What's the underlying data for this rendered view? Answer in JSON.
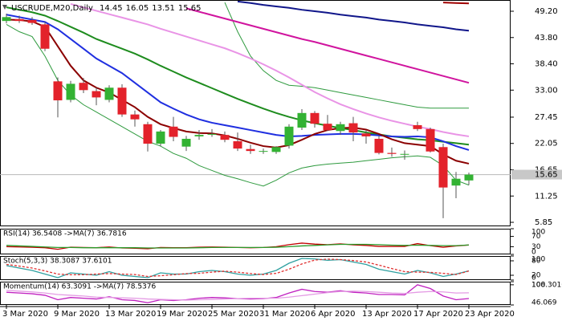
{
  "chart_data": [
    {
      "type": "candlestick",
      "title": "USCRUDE,M20,Daily",
      "categories": [
        "3 Mar 2020",
        null,
        null,
        null,
        "9 Mar 2020",
        null,
        null,
        null,
        "13 Mar 2020",
        null,
        null,
        null,
        "19 Mar 2020",
        null,
        null,
        null,
        "25 Mar 2020",
        null,
        null,
        null,
        "31 Mar 2020",
        null,
        null,
        null,
        "6 Apr 2020",
        null,
        null,
        null,
        "13 Apr 2020",
        null,
        null,
        null,
        "17 Apr 2020",
        null,
        null,
        null,
        "23 Apr 2020"
      ],
      "open": [
        47.2,
        47.6,
        47.4,
        46.5,
        34.8,
        31.0,
        34.5,
        32.8,
        31.0,
        33.5,
        28.0,
        26.0,
        22.0,
        25.5,
        21.4,
        23.5,
        23.9,
        23.8,
        22.5,
        20.9,
        20.5,
        20.3,
        21.6,
        25.3,
        28.3,
        26.1,
        24.6,
        26.2,
        24.1,
        23.0,
        20.1,
        19.9,
        25.8,
        25.0,
        21.3,
        13.4,
        14.45
      ],
      "high": [
        48.7,
        48.3,
        48.0,
        47.0,
        35.6,
        34.9,
        35.5,
        33.5,
        34.0,
        34.2,
        28.8,
        26.5,
        24.8,
        27.5,
        23.6,
        24.8,
        25.0,
        24.5,
        24.3,
        21.8,
        21.0,
        21.5,
        26.0,
        29.1,
        28.7,
        27.9,
        26.5,
        27.5,
        24.8,
        23.6,
        21.2,
        20.6,
        26.5,
        25.3,
        22.0,
        16.2,
        16.05
      ],
      "low": [
        46.7,
        46.8,
        46.4,
        41.0,
        27.4,
        30.5,
        32.4,
        29.9,
        30.5,
        27.5,
        25.5,
        20.4,
        21.5,
        22.5,
        20.5,
        22.8,
        23.4,
        22.3,
        20.5,
        19.9,
        19.9,
        19.9,
        21.0,
        24.8,
        25.3,
        24.6,
        23.8,
        22.5,
        22.0,
        19.8,
        19.3,
        18.7,
        24.6,
        20.2,
        6.7,
        10.8,
        13.51
      ],
      "close": [
        48.0,
        47.2,
        46.8,
        41.5,
        30.9,
        34.3,
        33.0,
        31.5,
        33.5,
        28.0,
        27.0,
        22.0,
        24.5,
        23.4,
        23.0,
        23.8,
        24.0,
        22.8,
        21.0,
        20.5,
        20.5,
        21.3,
        25.5,
        28.3,
        26.1,
        24.8,
        26.0,
        24.3,
        23.5,
        20.1,
        19.9,
        19.9,
        25.0,
        20.4,
        13.0,
        14.8,
        15.65
      ],
      "up_color": "#33b233",
      "down_color": "#e3222b",
      "series": [
        {
          "color": "#2e9a3e",
          "width": 1,
          "values": [
            46.5,
            45,
            44,
            40,
            35,
            32,
            30,
            28.5,
            27,
            25.5,
            24,
            22.5,
            21.5,
            20,
            19,
            17.5,
            16.5,
            15.5,
            14.8,
            14,
            13.3,
            14.5,
            16,
            17,
            17.5,
            17.8,
            18,
            18.2,
            18.5,
            18.8,
            19.1,
            19.3,
            19.5,
            19.2,
            17.5,
            14.5,
            13.5
          ]
        },
        {
          "color": "#2e9a3e",
          "width": 1,
          "values": [
            null,
            null,
            null,
            null,
            null,
            null,
            null,
            null,
            null,
            null,
            null,
            null,
            null,
            null,
            null,
            null,
            null,
            51,
            45,
            40,
            37,
            35,
            34,
            33.8,
            33.5,
            33,
            32.5,
            32,
            31.5,
            31,
            30.5,
            30,
            29.5,
            29.3,
            29.3,
            29.3,
            29.3
          ]
        },
        {
          "color": "#e994e6",
          "width": 2,
          "values": [
            null,
            null,
            null,
            null,
            null,
            50.7,
            50,
            49.3,
            48.6,
            47.9,
            47.2,
            46.5,
            45.6,
            44.8,
            44,
            43.2,
            42.4,
            41.6,
            40.6,
            39.5,
            38.3,
            37,
            35.6,
            34.1,
            32.6,
            31.3,
            30.1,
            29.1,
            28.2,
            27.4,
            26.7,
            26.1,
            25.5,
            25,
            24.4,
            23.9,
            23.5
          ]
        },
        {
          "color": "#d0149e",
          "width": 2,
          "values": [
            null,
            null,
            null,
            null,
            null,
            null,
            null,
            null,
            null,
            null,
            null,
            null,
            null,
            null,
            49.8,
            49.1,
            48.4,
            47.7,
            47.0,
            46.3,
            45.6,
            44.9,
            44.2,
            43.5,
            42.9,
            42.2,
            41.5,
            40.8,
            40.1,
            39.4,
            38.7,
            38.0,
            37.3,
            36.6,
            35.9,
            35.2,
            34.5
          ]
        },
        {
          "color": "#10168a",
          "width": 2,
          "values": [
            null,
            null,
            null,
            null,
            null,
            null,
            null,
            null,
            null,
            null,
            null,
            null,
            null,
            null,
            null,
            null,
            null,
            null,
            51.2,
            50.9,
            50.5,
            50.2,
            49.9,
            49.5,
            49.2,
            48.9,
            48.5,
            48.2,
            47.9,
            47.5,
            47.2,
            46.9,
            46.5,
            46.2,
            45.9,
            45.5,
            45.2
          ]
        },
        {
          "color": "#a00000",
          "width": 2,
          "values": [
            null,
            null,
            null,
            null,
            null,
            null,
            null,
            null,
            null,
            null,
            null,
            null,
            null,
            null,
            null,
            null,
            null,
            null,
            null,
            null,
            null,
            null,
            null,
            null,
            null,
            null,
            null,
            null,
            null,
            null,
            null,
            null,
            null,
            null,
            51.0,
            50.9,
            50.8
          ]
        },
        {
          "color": "#1e8c1e",
          "width": 2,
          "values": [
            50,
            49.5,
            49,
            48.3,
            47.2,
            46,
            44.8,
            43.5,
            42.5,
            41.5,
            40.5,
            39.3,
            38,
            36.8,
            35.6,
            34.5,
            33.4,
            32.3,
            31.2,
            30.2,
            29.2,
            28.3,
            27.5,
            26.8,
            26.2,
            25.7,
            25.2,
            24.8,
            24.3,
            23.9,
            23.5,
            23.2,
            22.9,
            22.7,
            22.4,
            22.1,
            21.8
          ]
        },
        {
          "color": "#1f2fe0",
          "width": 2,
          "values": [
            48.5,
            48,
            47.5,
            47,
            45.5,
            43.5,
            41.5,
            39.5,
            38,
            36.5,
            34.5,
            32.5,
            30.5,
            29.2,
            28,
            27,
            26.3,
            25.8,
            25.3,
            24.8,
            24.3,
            23.8,
            23.5,
            23.6,
            23.8,
            23.9,
            24,
            24,
            23.9,
            23.7,
            23.5,
            23.4,
            23.5,
            23.3,
            22.5,
            21.5,
            20.7
          ]
        },
        {
          "color": "#8b0000",
          "width": 2,
          "values": [
            47.5,
            47.4,
            47.1,
            46,
            42,
            38,
            35,
            33.5,
            32.5,
            31,
            29.5,
            27.5,
            26,
            25.2,
            24.5,
            24.2,
            24.1,
            23.7,
            23,
            22.2,
            21.5,
            21.2,
            21.7,
            22.8,
            24,
            24.8,
            25.2,
            25.3,
            24.9,
            24,
            22.9,
            22.1,
            21.8,
            21.5,
            19.8,
            18.5,
            17.9
          ]
        }
      ],
      "ylim": [
        5.03,
        51.51
      ],
      "yticks": [
        {
          "value": 49.2,
          "label": "49.20"
        },
        {
          "value": 43.8,
          "label": "43.80"
        },
        {
          "value": 38.4,
          "label": "38.40"
        },
        {
          "value": 33,
          "label": "33.00"
        },
        27.45,
        22.05,
        16.65,
        11.25,
        5.85
      ],
      "last_price": 15.65
    },
    {
      "type": "line",
      "title": "RSI(14) 36.5408 ->MA(7) 36.7816",
      "series": [
        {
          "color": "#c00000",
          "values": [
            30,
            29,
            28,
            26,
            20,
            28,
            27,
            26,
            29,
            25,
            24,
            22,
            27,
            26,
            26,
            28,
            29,
            28,
            27,
            26,
            27,
            30,
            38,
            44,
            40,
            38,
            41,
            37,
            35,
            31,
            31,
            31,
            42,
            34,
            28,
            33,
            36.54
          ]
        },
        {
          "color": "#2a9a2a",
          "values": [
            35,
            33,
            31,
            29,
            27,
            27,
            26,
            26,
            26,
            26,
            26,
            25,
            25,
            25,
            25,
            26,
            27,
            27,
            27,
            27,
            27,
            28,
            30,
            33,
            35,
            37,
            39,
            39,
            39,
            38,
            36,
            35,
            36,
            35,
            34,
            34,
            36.78
          ]
        }
      ],
      "ylim": [
        0,
        100
      ],
      "yticks": [
        100,
        70,
        30,
        0
      ]
    },
    {
      "type": "line",
      "title": "Stoch(5,3,3) 38.3087 37.6101",
      "series": [
        {
          "color": "#2ea0a0",
          "values": [
            60,
            50,
            40,
            25,
            10,
            30,
            25,
            20,
            35,
            20,
            15,
            10,
            30,
            25,
            25,
            35,
            40,
            35,
            25,
            20,
            25,
            40,
            70,
            90,
            88,
            82,
            85,
            75,
            65,
            45,
            35,
            25,
            40,
            30,
            15,
            25,
            38.31
          ]
        },
        {
          "color": "#e03030",
          "dashed": true,
          "values": [
            65,
            58,
            50,
            38,
            25,
            22,
            22,
            25,
            27,
            25,
            23,
            15,
            18,
            22,
            27,
            28,
            33,
            37,
            33,
            27,
            23,
            28,
            45,
            67,
            83,
            87,
            85,
            81,
            75,
            62,
            48,
            35,
            33,
            32,
            28,
            23,
            37.61
          ]
        }
      ],
      "ylim": [
        0,
        100
      ],
      "yticks": [
        100,
        80,
        20,
        0
      ]
    },
    {
      "type": "line",
      "title": "Momentum(14) 63.3091 ->MA(7) 78.5376",
      "series": [
        {
          "color": "#c020c0",
          "values": [
            80,
            78,
            76,
            72,
            60,
            66,
            64,
            62,
            68,
            60,
            58,
            52,
            60,
            58,
            60,
            64,
            66,
            65,
            63,
            62,
            63,
            66,
            78,
            88,
            82,
            80,
            84,
            80,
            78,
            74,
            74,
            73,
            100,
            90,
            70,
            60,
            63.31
          ]
        },
        {
          "color": "#e49be4",
          "values": [
            85,
            83,
            81,
            78,
            74,
            72,
            70,
            67,
            66,
            65,
            64,
            62,
            61,
            60,
            59,
            60,
            61,
            62,
            63,
            64,
            64,
            64,
            67,
            71,
            75,
            79,
            82,
            83,
            82,
            80,
            78,
            77,
            80,
            82,
            81,
            78,
            78.54
          ]
        }
      ],
      "ylim": [
        46.069,
        108.3016
      ],
      "yticks": [
        108.3016,
        100,
        46.069
      ]
    }
  ]
}
